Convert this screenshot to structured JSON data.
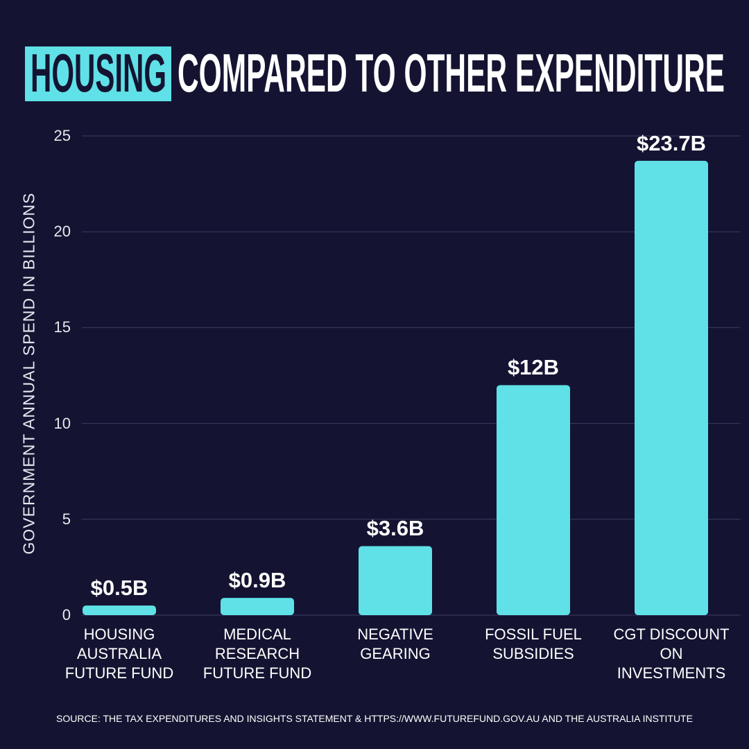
{
  "chart_data": {
    "type": "bar",
    "title_highlight": "HOUSING",
    "title": "COMPARED TO OTHER EXPENDITURE",
    "y_label": "GOVERNMENT ANNUAL SPEND IN BILLIONS",
    "categories": [
      "HOUSING AUSTRALIA FUTURE FUND",
      "MEDICAL RESEARCH FUTURE FUND",
      "NEGATIVE GEARING",
      "FOSSIL FUEL SUBSIDIES",
      "CGT DISCOUNT ON INVESTMENTS"
    ],
    "values": [
      0.5,
      0.9,
      3.6,
      12,
      23.7
    ],
    "value_labels": [
      "$0.5B",
      "$0.9B",
      "$3.6B",
      "$12B",
      "$23.7B"
    ],
    "color": "#5fe1e7",
    "ylim": [
      0,
      25
    ],
    "yticks": [
      0,
      5,
      10,
      15,
      20,
      25
    ],
    "grid": true,
    "source": "SOURCE: THE TAX EXPENDITURES AND INSIGHTS STATEMENT & HTTPS://WWW.FUTUREFUND.GOV.AU AND THE AUSTRALIA INSTITUTE"
  }
}
